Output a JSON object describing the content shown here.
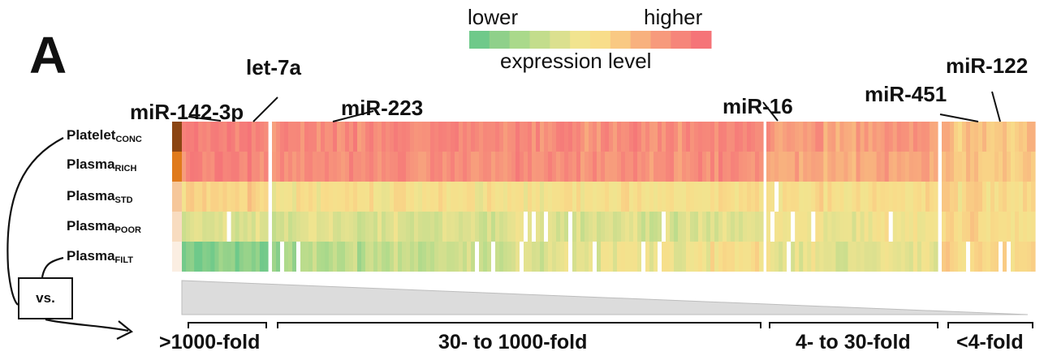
{
  "panel_label": "A",
  "legend": {
    "lower_label": "lower",
    "higher_label": "higher",
    "caption": "expression level",
    "colors": [
      "#6fc98a",
      "#8fd08a",
      "#aad98b",
      "#c3dd8c",
      "#dbe08f",
      "#f1e48f",
      "#f8dd8a",
      "#f9c983",
      "#f8b17e",
      "#f79a7c",
      "#f6857a",
      "#f57478"
    ]
  },
  "mirna_labels": [
    {
      "text": "miR-142-3p"
    },
    {
      "text": "let-7a"
    },
    {
      "text": "miR-223"
    },
    {
      "text": "miR-16"
    },
    {
      "text": "miR-451"
    },
    {
      "text": "miR-122"
    }
  ],
  "rows": [
    {
      "label": "Platelet",
      "sub": "CONC",
      "swatch": "#8b4513"
    },
    {
      "label": "Plasma",
      "sub": "RICH",
      "swatch": "#e07a1c"
    },
    {
      "label": "Plasma",
      "sub": "STD",
      "swatch": "#f6c79a"
    },
    {
      "label": "Plasma",
      "sub": "POOR",
      "swatch": "#f8dcc0"
    },
    {
      "label": "Plasma",
      "sub": "FILT",
      "swatch": "#fbeee2"
    }
  ],
  "vs_label": "vs.",
  "fold_groups": [
    {
      "label": ">1000-fold"
    },
    {
      "label": "30- to 1000-fold"
    },
    {
      "label": "4- to 30-fold"
    },
    {
      "label": "<4-fold"
    }
  ]
}
